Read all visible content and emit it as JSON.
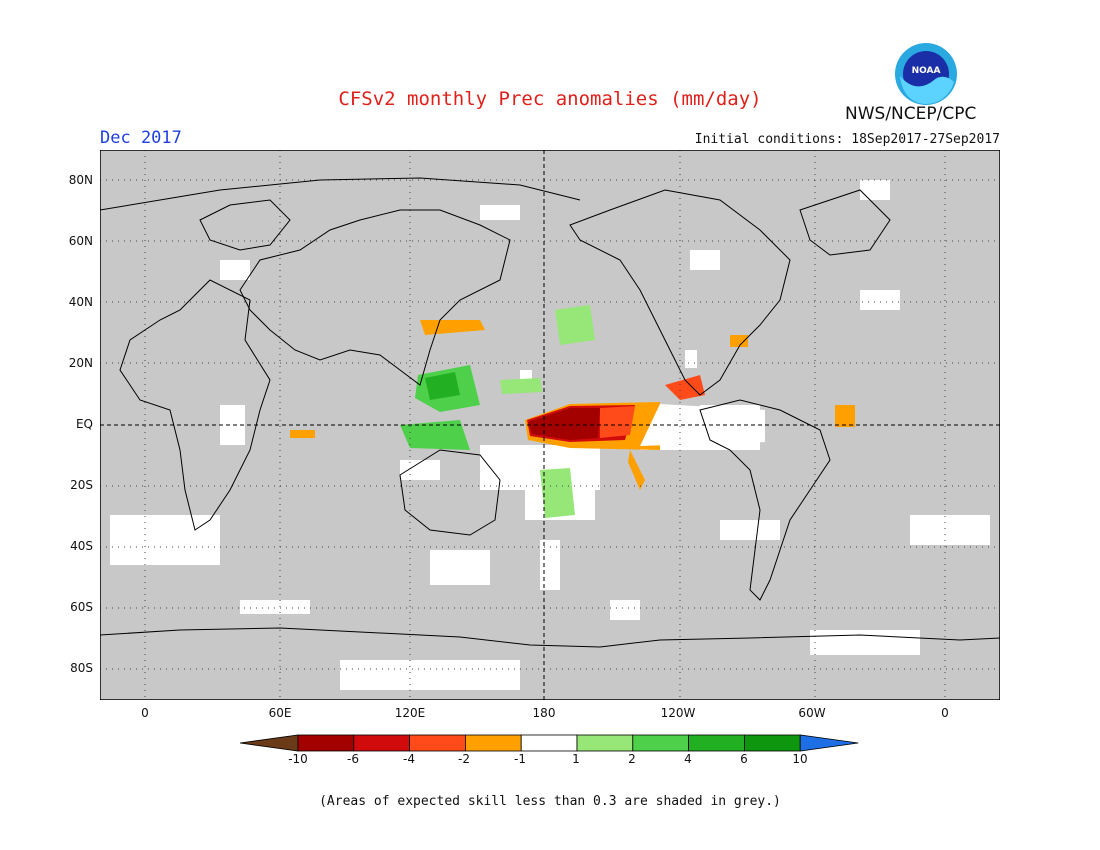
{
  "header": {
    "title": "CFSv2 monthly Prec anomalies (mm/day)",
    "agency": "NWS/NCEP/CPC",
    "logo_text": "NOAA",
    "month": "Dec 2017",
    "initial_conditions": "Initial conditions: 18Sep2017-27Sep2017"
  },
  "map": {
    "projection": "equirectangular (0 to 360, Pacific-centered at 180)",
    "background_note": "grey = expected skill < 0.3",
    "lat_labels": [
      "80N",
      "60N",
      "40N",
      "20N",
      "EQ",
      "20S",
      "40S",
      "60S",
      "80S"
    ],
    "lon_labels": [
      "0",
      "60E",
      "120E",
      "180",
      "120W",
      "60W",
      "0"
    ],
    "lines": {
      "equator": "dashed",
      "dateline": "dashed",
      "grid": "dotted"
    },
    "features": [
      {
        "name": "central-pacific-dry-core",
        "category": "< -10 / -6 to -4",
        "region": "Equatorial central Pacific 165E-150W"
      },
      {
        "name": "eastern-pacific-dry-tongue",
        "category": "-4 to -1",
        "region": "Equatorial eastern Pacific 150W-80W"
      },
      {
        "name": "maritime-continent-wet",
        "category": "1 to 4",
        "region": "Philippines / Indonesia / West Pacific"
      },
      {
        "name": "subtropical-pacific-wet",
        "category": "1 to 2",
        "region": "South Pacific convergence zone"
      }
    ],
    "colors": {
      "skill_mask": "#c8c8c8",
      "land_outline": "#000000"
    }
  },
  "colorbar": {
    "labels": [
      "-10",
      "-6",
      "-4",
      "-2",
      "-1",
      "1",
      "2",
      "4",
      "6",
      "10"
    ],
    "bins": [
      {
        "label": "< -10",
        "color": "#6b3a18"
      },
      {
        "label": "-10 to -6",
        "color": "#a30000"
      },
      {
        "label": "-6 to -4",
        "color": "#d10b0b"
      },
      {
        "label": "-4 to -2",
        "color": "#ff4a1a"
      },
      {
        "label": "-2 to -1",
        "color": "#ffa000"
      },
      {
        "label": "-1 to 1",
        "color": "#ffffff"
      },
      {
        "label": "1 to 2",
        "color": "#96e678"
      },
      {
        "label": "2 to 4",
        "color": "#4ed04a"
      },
      {
        "label": "4 to 6",
        "color": "#22b022"
      },
      {
        "label": "6 to 10",
        "color": "#0e960e"
      },
      {
        "label": "> 10",
        "color": "#1e6ee6"
      }
    ]
  },
  "footnote": "(Areas of expected skill less than 0.3 are shaded in grey.)"
}
